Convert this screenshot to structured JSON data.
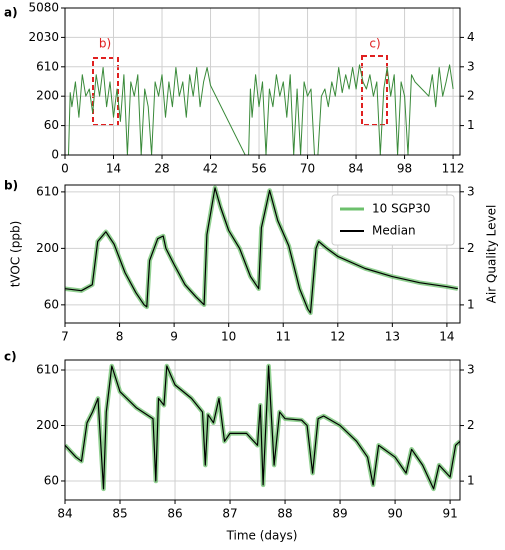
{
  "chart_data": [
    {
      "type": "line",
      "panel_label": "a)",
      "yscale": "piecewise",
      "grid": true,
      "annotations": [
        "b)",
        "c)"
      ],
      "xlim": [
        0,
        114
      ],
      "xticks": [
        0,
        14,
        28,
        42,
        56,
        70,
        84,
        98,
        112
      ],
      "ylim": [
        0,
        5080
      ],
      "yticks": [
        0,
        60,
        200,
        610,
        2030,
        5080
      ],
      "y2lim": [
        0,
        5
      ],
      "y2ticks": [
        1,
        2,
        3,
        4
      ],
      "x": [
        0,
        1,
        1.5,
        2,
        3,
        4,
        5,
        6,
        7,
        8,
        9,
        10,
        11,
        12,
        13,
        14,
        15,
        16,
        17,
        18,
        19,
        20,
        21,
        22,
        23,
        24,
        25,
        26,
        27,
        28,
        29,
        30,
        31,
        32,
        33,
        34,
        35,
        36,
        37,
        38,
        39,
        40,
        41,
        42,
        52,
        53,
        53.5,
        54,
        55,
        56,
        57,
        58,
        59,
        60,
        61,
        62,
        63,
        64,
        65,
        66,
        67,
        68,
        69,
        70,
        71,
        72,
        73,
        74,
        75,
        76,
        77,
        78,
        79,
        80,
        81,
        82,
        83,
        84,
        85,
        86,
        87,
        88,
        89,
        90,
        91,
        92,
        93,
        94,
        95,
        96,
        97,
        98,
        99,
        100,
        101,
        102,
        103,
        104,
        105,
        106,
        107,
        108,
        109,
        110,
        111,
        112
      ],
      "series": [
        {
          "color": "#3a8a3a",
          "values": [
            0,
            0,
            250,
            150,
            400,
            100,
            500,
            200,
            300,
            120,
            500,
            200,
            600,
            150,
            400,
            100,
            300,
            80,
            500,
            0,
            400,
            200,
            500,
            0,
            300,
            150,
            0,
            400,
            200,
            500,
            100,
            400,
            150,
            600,
            200,
            400,
            100,
            500,
            200,
            600,
            150,
            400,
            600,
            350,
            0,
            0,
            300,
            100,
            500,
            150,
            400,
            0,
            300,
            150,
            500,
            200,
            400,
            100,
            500,
            0,
            300,
            0,
            400,
            200,
            300,
            0,
            0,
            200,
            300,
            150,
            400,
            200,
            600,
            250,
            500,
            300,
            600,
            300,
            700,
            400,
            300,
            500,
            200,
            400,
            0,
            300,
            600,
            200,
            500,
            0,
            400,
            200,
            0,
            500,
            400,
            350,
            300,
            250,
            200,
            500,
            150,
            600,
            200,
            400,
            700,
            300
          ]
        }
      ]
    },
    {
      "type": "line",
      "panel_label": "b)",
      "yscale": "piecewise",
      "grid": true,
      "legend": "upper right",
      "y_label": "tVOC (ppb)",
      "y2_label": "Air Quality Level",
      "xlim": [
        7,
        14.24
      ],
      "xticks": [
        7,
        8,
        9,
        10,
        11,
        12,
        13,
        14
      ],
      "ylim": [
        15,
        660
      ],
      "yticks": [
        60,
        200,
        610
      ],
      "y2lim": [
        0.68,
        3.12
      ],
      "y2ticks": [
        1,
        2,
        3
      ],
      "x": [
        7.0,
        7.3,
        7.5,
        7.6,
        7.75,
        7.9,
        8.1,
        8.3,
        8.45,
        8.5,
        8.55,
        8.7,
        8.8,
        8.85,
        9.0,
        9.2,
        9.4,
        9.55,
        9.6,
        9.75,
        9.85,
        10.0,
        10.2,
        10.4,
        10.55,
        10.6,
        10.75,
        10.9,
        11.1,
        11.3,
        11.45,
        11.5,
        11.6,
        11.65,
        11.8,
        12.0,
        12.5,
        13.0,
        13.5,
        14.0,
        14.2
      ],
      "series": [
        {
          "name": "10 SGP30",
          "color": "#6cc06c",
          "values": [
            100,
            95,
            110,
            250,
            320,
            230,
            140,
            90,
            60,
            55,
            170,
            270,
            290,
            200,
            160,
            110,
            80,
            60,
            300,
            640,
            500,
            330,
            200,
            130,
            100,
            350,
            620,
            400,
            220,
            100,
            50,
            40,
            200,
            250,
            200,
            180,
            150,
            130,
            115,
            105,
            100
          ]
        },
        {
          "name": "Median",
          "color": "#000000",
          "values": [
            100,
            95,
            110,
            250,
            320,
            230,
            140,
            90,
            60,
            55,
            170,
            270,
            290,
            200,
            160,
            110,
            80,
            60,
            300,
            640,
            500,
            330,
            200,
            130,
            100,
            350,
            620,
            400,
            220,
            100,
            50,
            40,
            200,
            250,
            200,
            180,
            150,
            130,
            115,
            105,
            100
          ]
        }
      ]
    },
    {
      "type": "line",
      "panel_label": "c)",
      "yscale": "piecewise",
      "grid": true,
      "x_label": "Time (days)",
      "xlim": [
        84,
        91.18
      ],
      "xticks": [
        84,
        85,
        86,
        87,
        88,
        89,
        90,
        91
      ],
      "ylim": [
        12,
        684
      ],
      "yticks": [
        60,
        200,
        610
      ],
      "y2lim": [
        0.66,
        3.18
      ],
      "y2ticks": [
        1,
        2,
        3
      ],
      "x": [
        84.0,
        84.2,
        84.3,
        84.4,
        84.5,
        84.6,
        84.7,
        84.75,
        84.85,
        85.0,
        85.3,
        85.6,
        85.65,
        85.7,
        85.8,
        85.85,
        86.0,
        86.3,
        86.5,
        86.55,
        86.6,
        86.7,
        86.8,
        86.9,
        87.0,
        87.3,
        87.5,
        87.55,
        87.6,
        87.7,
        87.8,
        87.9,
        88.0,
        88.3,
        88.4,
        88.5,
        88.6,
        88.7,
        89.0,
        89.3,
        89.5,
        89.6,
        89.7,
        89.9,
        90.0,
        90.2,
        90.3,
        90.5,
        90.7,
        90.8,
        91.0,
        91.1,
        91.18
      ],
      "series": [
        {
          "name": "10 SGP30",
          "color": "#6cc06c",
          "values": [
            150,
            120,
            110,
            220,
            300,
            400,
            40,
            300,
            640,
            450,
            330,
            250,
            60,
            400,
            350,
            640,
            500,
            400,
            300,
            100,
            280,
            220,
            400,
            160,
            180,
            180,
            150,
            350,
            50,
            640,
            100,
            300,
            250,
            240,
            200,
            80,
            250,
            270,
            200,
            160,
            120,
            50,
            150,
            130,
            120,
            80,
            140,
            100,
            40,
            100,
            70,
            150,
            160
          ]
        },
        {
          "name": "Median",
          "color": "#000000",
          "values": [
            150,
            120,
            110,
            220,
            300,
            400,
            40,
            300,
            640,
            450,
            330,
            250,
            60,
            400,
            350,
            640,
            500,
            400,
            300,
            100,
            280,
            220,
            400,
            160,
            180,
            180,
            150,
            350,
            50,
            640,
            100,
            300,
            250,
            240,
            200,
            80,
            250,
            270,
            200,
            160,
            120,
            50,
            150,
            130,
            120,
            80,
            140,
            100,
            40,
            100,
            70,
            150,
            160
          ]
        }
      ]
    }
  ]
}
